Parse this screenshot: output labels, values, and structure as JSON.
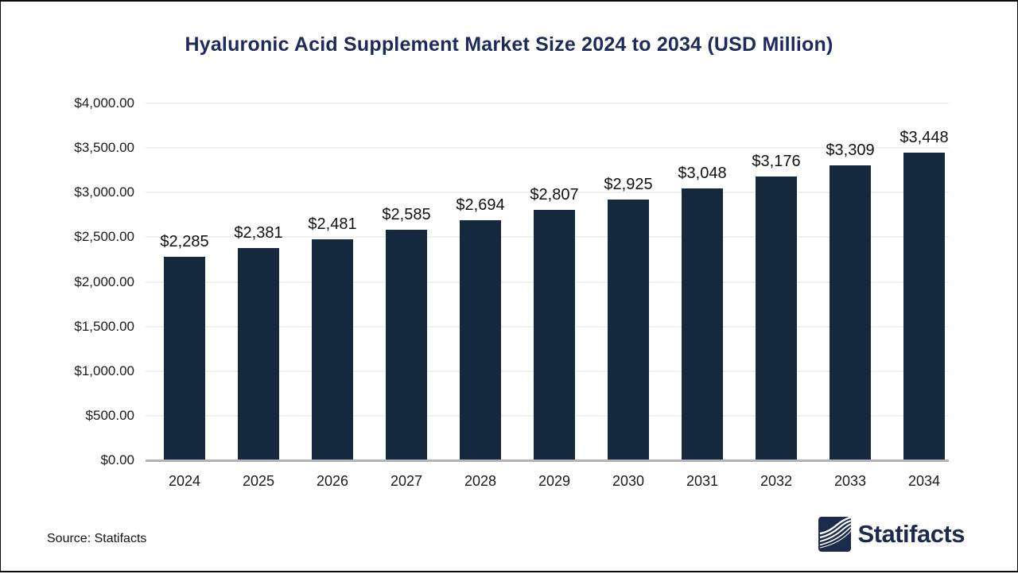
{
  "page": {
    "title": "Hyaluronic Acid Supplement Market Size 2024 to 2034 (USD Million)",
    "source_label": "Source: Statifacts",
    "brand_name": "Statifacts"
  },
  "colors": {
    "bar": "#14283E",
    "title_text": "#1D2B5A",
    "axis_line": "#B3B3B3",
    "gridline": "#F0F0F0",
    "tick_text": "#1A1A1A",
    "data_label_text": "#111111",
    "brand_navy": "#1C2A4C"
  },
  "chart_data": {
    "type": "bar",
    "title": "Hyaluronic Acid Supplement Market Size 2024 to 2034 (USD Million)",
    "unit": "USD Million",
    "categories": [
      "2024",
      "2025",
      "2026",
      "2027",
      "2028",
      "2029",
      "2030",
      "2031",
      "2032",
      "2033",
      "2034"
    ],
    "values": [
      2285,
      2381,
      2481,
      2585,
      2694,
      2807,
      2925,
      3048,
      3176,
      3309,
      3448
    ],
    "value_labels": [
      "$2,285",
      "$2,381",
      "$2,481",
      "$2,585",
      "$2,694",
      "$2,807",
      "$2,925",
      "$3,048",
      "$3,176",
      "$3,309",
      "$3,448"
    ],
    "ylim": [
      0,
      4000
    ],
    "y_ticks": [
      {
        "value": 4000,
        "label": "$4,000.00"
      },
      {
        "value": 3500,
        "label": "$3,500.00"
      },
      {
        "value": 3000,
        "label": "$3,000.00"
      },
      {
        "value": 2500,
        "label": "$2,500.00"
      },
      {
        "value": 2000,
        "label": "$2,000.00"
      },
      {
        "value": 1500,
        "label": "$1,500.00"
      },
      {
        "value": 1000,
        "label": "$1,000.00"
      },
      {
        "value": 500,
        "label": "$500.00"
      },
      {
        "value": 0,
        "label": "$0.00"
      }
    ],
    "grid": true,
    "legend": false,
    "source": "Statifacts"
  }
}
